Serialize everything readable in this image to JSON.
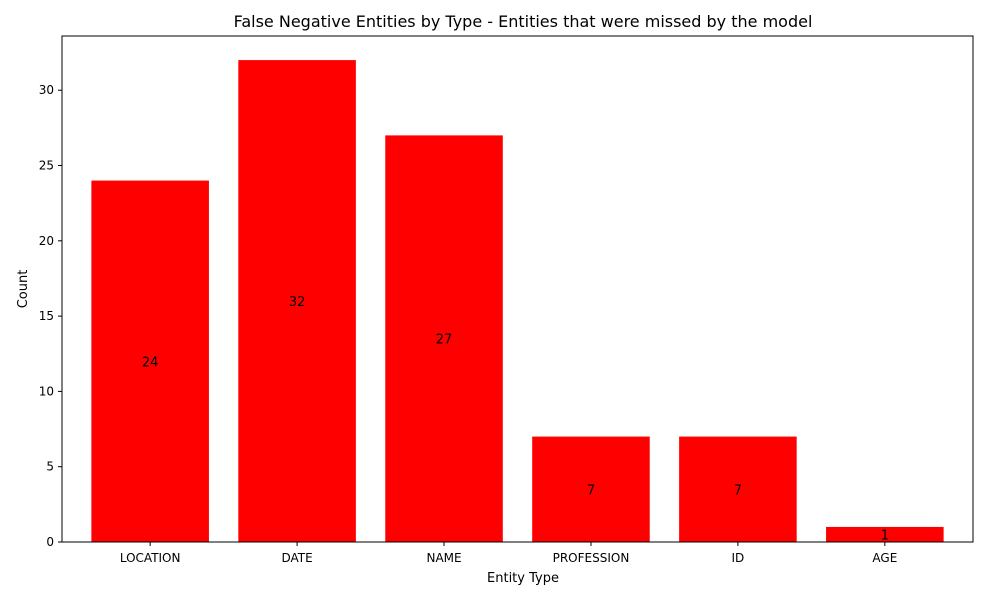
{
  "chart_data": {
    "type": "bar",
    "title": "False Negative Entities by Type - Entities that were missed by the model",
    "xlabel": "Entity Type",
    "ylabel": "Count",
    "categories": [
      "LOCATION",
      "DATE",
      "NAME",
      "PROFESSION",
      "ID",
      "AGE"
    ],
    "values": [
      24,
      32,
      27,
      7,
      7,
      1
    ],
    "ylim": [
      0,
      33.6
    ],
    "yticks": [
      0,
      5,
      10,
      15,
      20,
      25,
      30
    ],
    "bar_color": "#ff0000",
    "grid": false,
    "legend": "none"
  }
}
